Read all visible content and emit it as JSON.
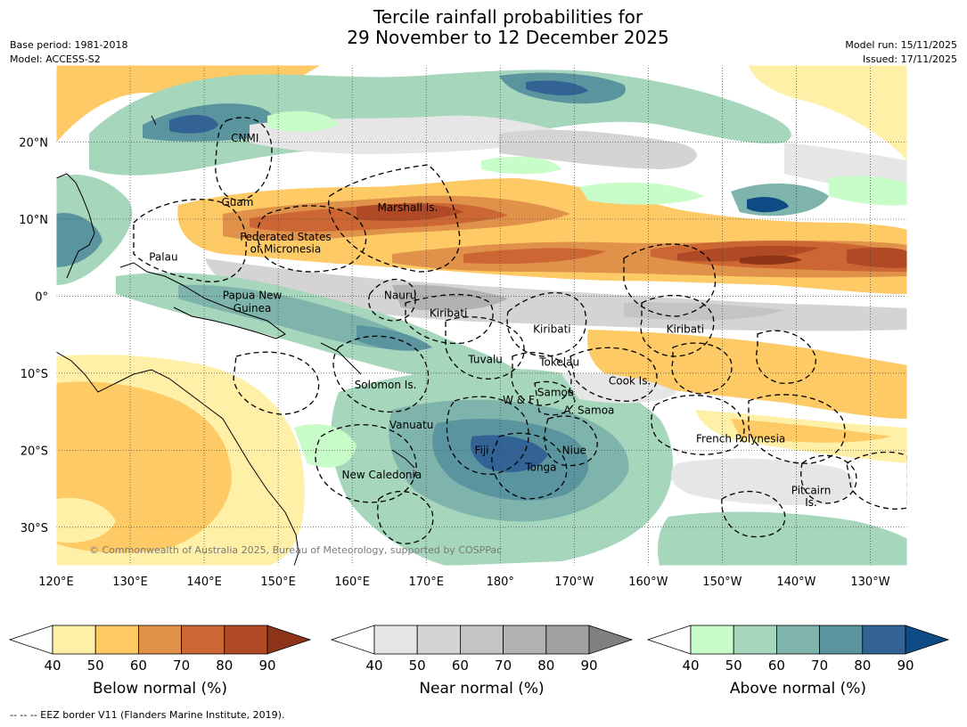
{
  "header": {
    "title_line1": "Tercile rainfall probabilities for",
    "title_line2": "29 November to 12 December 2025",
    "base_period": "Base period: 1981-2018",
    "model": "Model: ACCESS-S2",
    "model_run": "Model run: 15/11/2025",
    "issued": "Issued: 17/11/2025"
  },
  "map": {
    "lon_labels": [
      "120°E",
      "130°E",
      "140°E",
      "150°E",
      "160°E",
      "170°E",
      "180°",
      "170°W",
      "160°W",
      "150°W",
      "140°W",
      "130°W"
    ],
    "lat_labels": [
      "20°N",
      "10°N",
      "0°",
      "10°S",
      "20°S",
      "30°S"
    ],
    "copyright": "© Commonwealth of Australia 2025, Bureau of Meteorology, supported by COSPPac",
    "regions": [
      {
        "name": "CNMI",
        "lon": 145.5,
        "lat": 20.5
      },
      {
        "name": "Guam",
        "lon": 144.5,
        "lat": 12.2
      },
      {
        "name": "Marshall Is.",
        "lon": 167.5,
        "lat": 11.5
      },
      {
        "name": "Federated States",
        "lon": 151,
        "lat": 7.7
      },
      {
        "name": "of Micronesia",
        "lon": 151,
        "lat": 6.1
      },
      {
        "name": "Palau",
        "lon": 134.5,
        "lat": 5.1
      },
      {
        "name": "Papua New",
        "lon": 146.5,
        "lat": 0.1
      },
      {
        "name": "Guinea",
        "lon": 146.5,
        "lat": -1.6
      },
      {
        "name": "Nauru",
        "lon": 166.5,
        "lat": 0.1
      },
      {
        "name": "Kiribati",
        "lon": 173,
        "lat": -2.2
      },
      {
        "name": "Kiribati",
        "lon": 187,
        "lat": -4.3
      },
      {
        "name": "Kiribati",
        "lon": 205,
        "lat": -4.3
      },
      {
        "name": "Tuvalu",
        "lon": 178,
        "lat": -8.2
      },
      {
        "name": "Tokelau",
        "lon": 188,
        "lat": -8.6
      },
      {
        "name": "Solomon Is.",
        "lon": 164.5,
        "lat": -11.5
      },
      {
        "name": "Cook Is.",
        "lon": 197.5,
        "lat": -11
      },
      {
        "name": "Samoa",
        "lon": 187.5,
        "lat": -12.5
      },
      {
        "name": "W & F",
        "lon": 182.5,
        "lat": -13.5
      },
      {
        "name": "A. Samoa",
        "lon": 192,
        "lat": -14.8
      },
      {
        "name": "Vanuatu",
        "lon": 168,
        "lat": -16.7
      },
      {
        "name": "French Polynesia",
        "lon": 212.5,
        "lat": -18.5
      },
      {
        "name": "Fiji",
        "lon": 177.5,
        "lat": -20
      },
      {
        "name": "Niue",
        "lon": 190,
        "lat": -20
      },
      {
        "name": "Tonga",
        "lon": 185.5,
        "lat": -22.2
      },
      {
        "name": "New Caledonia",
        "lon": 164,
        "lat": -23.2
      },
      {
        "name": "Pitcairn",
        "lon": 222,
        "lat": -25.2
      },
      {
        "name": "Is.",
        "lon": 222,
        "lat": -26.8
      }
    ]
  },
  "colorbars": [
    {
      "label": "Below normal (%)",
      "ticks": [
        "40",
        "50",
        "60",
        "70",
        "80",
        "90"
      ],
      "colors": [
        "#ffffff",
        "#fff0a8",
        "#fdca66",
        "#e0924a",
        "#cc6633",
        "#b04a26",
        "#8c3318"
      ]
    },
    {
      "label": "Near normal (%)",
      "ticks": [
        "40",
        "50",
        "60",
        "70",
        "80",
        "90"
      ],
      "colors": [
        "#ffffff",
        "#e6e6e6",
        "#d4d4d4",
        "#c4c4c4",
        "#b2b2b2",
        "#a0a0a0",
        "#808080"
      ]
    },
    {
      "label": "Above normal (%)",
      "ticks": [
        "40",
        "50",
        "60",
        "70",
        "80",
        "90"
      ],
      "colors": [
        "#ffffff",
        "#c8fcc8",
        "#a6d6bc",
        "#7fb4ac",
        "#5a949e",
        "#326394",
        "#0e4a84"
      ]
    }
  ],
  "footer": "--  --  -- EEZ border V11 (Flanders Marine Institute, 2019)."
}
